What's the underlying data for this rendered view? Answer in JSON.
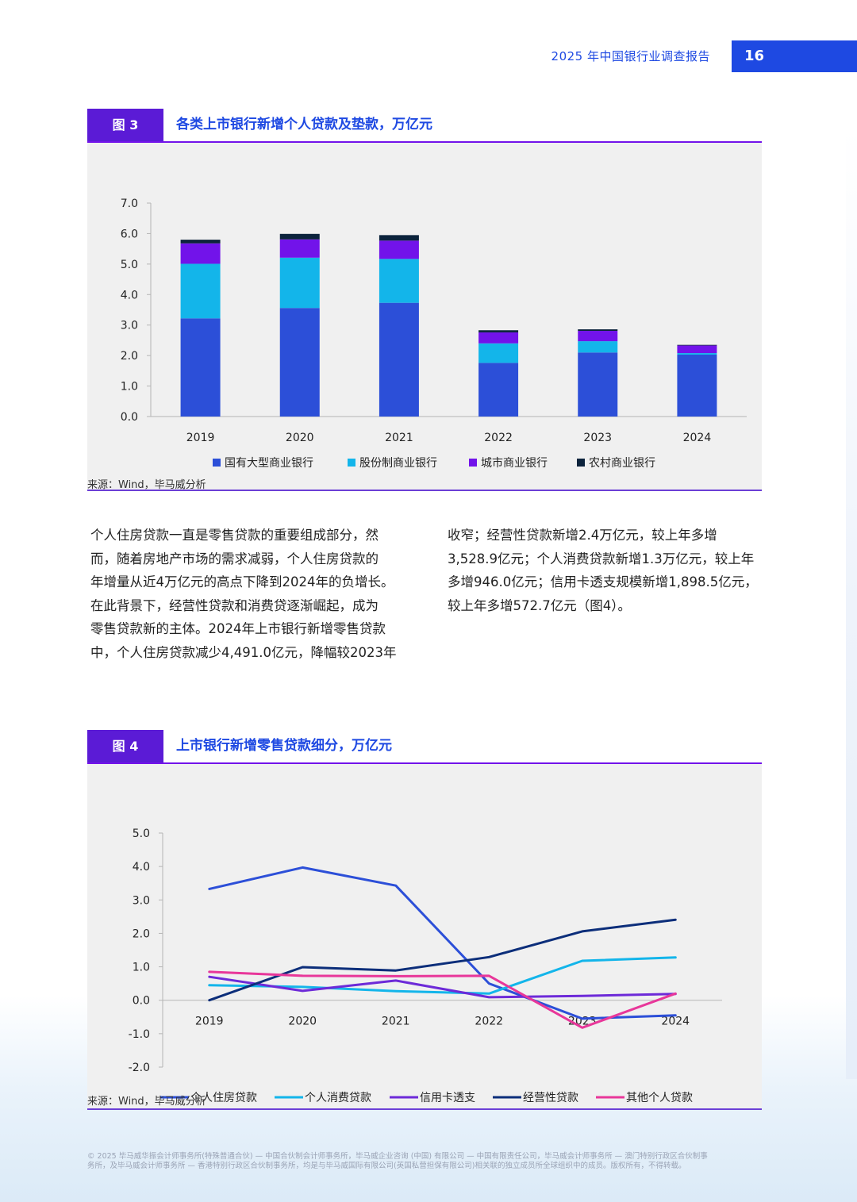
{
  "header": {
    "report_title": "2025 年中国银行业调查报告",
    "page_number": "16",
    "brand_color": "#1e49e2"
  },
  "figure3": {
    "tag": "图 3",
    "title": "各类上市银行新增个人贷款及垫款，万亿元",
    "source": "来源：Wind，毕马威分析"
  },
  "figure4": {
    "tag": "图 4",
    "title": "上市银行新增零售贷款细分，万亿元",
    "source": "来源：Wind，毕马威分析"
  },
  "body": {
    "left_lines": [
      "个人住房贷款一直是零售贷款的重要组成部分，然",
      "而，随着房地产市场的需求减弱，个人住房贷款的",
      "年增量从近4万亿元的高点下降到2024年的负增长。",
      "在此背景下，经营性贷款和消费贷逐渐崛起，成为",
      "零售贷款新的主体。2024年上市银行新增零售贷款",
      "中，个人住房贷款减少4,491.0亿元，降幅较2023年"
    ],
    "right_lines": [
      "收窄；经营性贷款新增2.4万亿元，较上年多增",
      "3,528.9亿元；个人消费贷款新增1.3万亿元，较上年",
      "多增946.0亿元；信用卡透支规模新增1,898.5亿元，",
      "较上年多增572.7亿元（图4）。"
    ]
  },
  "footer": {
    "line1": "© 2025 毕马威华振会计师事务所(特殊普通合伙) — 中国合伙制会计师事务所，毕马威企业咨询 (中国) 有限公司 — 中国有限责任公司，毕马威会计师事务所 — 澳门特别行政区合伙制事",
    "line2": "务所，及毕马威会计师事务所 — 香港特别行政区合伙制事务所，均是与毕马威国际有限公司(英国私营担保有限公司)相关联的独立成员所全球组织中的成员。版权所有，不得转载。"
  },
  "chart_data": [
    {
      "type": "bar",
      "stacked": true,
      "categories": [
        "2019",
        "2020",
        "2021",
        "2022",
        "2023",
        "2024"
      ],
      "ylim": [
        0,
        7
      ],
      "yticks": [
        "0.0",
        "1.0",
        "2.0",
        "3.0",
        "4.0",
        "5.0",
        "6.0",
        "7.0"
      ],
      "legend_position": "bottom",
      "series": [
        {
          "name": "国有大型商业银行",
          "color": "#2c4fd8",
          "values": [
            3.22,
            3.56,
            3.73,
            1.76,
            2.1,
            2.03
          ]
        },
        {
          "name": "股份制商业银行",
          "color": "#13b5ea",
          "values": [
            1.79,
            1.65,
            1.44,
            0.64,
            0.37,
            0.05
          ]
        },
        {
          "name": "城市商业银行",
          "color": "#7213ea",
          "values": [
            0.67,
            0.6,
            0.6,
            0.36,
            0.34,
            0.25
          ]
        },
        {
          "name": "农村商业银行",
          "color": "#0c233c",
          "values": [
            0.12,
            0.18,
            0.18,
            0.07,
            0.05,
            0.02
          ]
        }
      ]
    },
    {
      "type": "line",
      "categories": [
        "2019",
        "2020",
        "2021",
        "2022",
        "2023",
        "2024"
      ],
      "ylim": [
        -2,
        5
      ],
      "yticks": [
        "-2.0",
        "-1.0",
        "0.0",
        "1.0",
        "2.0",
        "3.0",
        "4.0",
        "5.0"
      ],
      "legend_position": "bottom",
      "series": [
        {
          "name": "个人住房贷款",
          "color": "#2c4fd8",
          "values": [
            3.33,
            3.97,
            3.43,
            0.5,
            -0.55,
            -0.45
          ]
        },
        {
          "name": "个人消费贷款",
          "color": "#13b5ea",
          "values": [
            0.45,
            0.4,
            0.27,
            0.2,
            1.18,
            1.28
          ]
        },
        {
          "name": "信用卡透支",
          "color": "#6d2ad8",
          "values": [
            0.7,
            0.28,
            0.59,
            0.09,
            0.13,
            0.19
          ]
        },
        {
          "name": "经营性贷款",
          "color": "#0c2e7a",
          "values": [
            0.0,
            0.99,
            0.89,
            1.29,
            2.06,
            2.41
          ]
        },
        {
          "name": "其他个人贷款",
          "color": "#e8379a",
          "values": [
            0.85,
            0.73,
            0.72,
            0.73,
            -0.82,
            0.2
          ]
        }
      ]
    }
  ]
}
